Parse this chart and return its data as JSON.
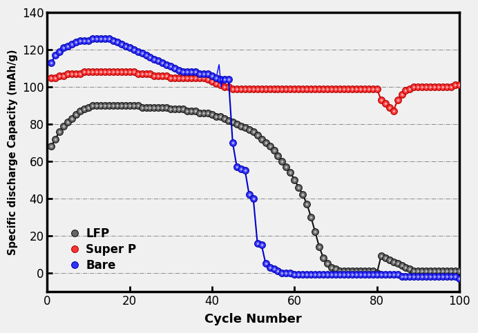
{
  "xlabel": "Cycle Number",
  "ylabel": "Specific discharge Capacity (mAh/g)",
  "xlim": [
    0,
    100
  ],
  "ylim": [
    -10,
    140
  ],
  "yticks": [
    0,
    20,
    40,
    60,
    80,
    100,
    120,
    140
  ],
  "xticks": [
    0,
    20,
    40,
    60,
    80,
    100
  ],
  "legend_labels": [
    "LFP",
    "Super P",
    "Bare"
  ],
  "LFP": {
    "x": [
      1,
      2,
      3,
      4,
      5,
      6,
      7,
      8,
      9,
      10,
      11,
      12,
      13,
      14,
      15,
      16,
      17,
      18,
      19,
      20,
      21,
      22,
      23,
      24,
      25,
      26,
      27,
      28,
      29,
      30,
      31,
      32,
      33,
      34,
      35,
      36,
      37,
      38,
      39,
      40,
      41,
      42,
      43,
      44,
      45,
      46,
      47,
      48,
      49,
      50,
      51,
      52,
      53,
      54,
      55,
      56,
      57,
      58,
      59,
      60,
      61,
      62,
      63,
      64,
      65,
      66,
      67,
      68,
      69,
      70,
      71,
      72,
      73,
      74,
      75,
      76,
      77,
      78,
      79,
      80,
      81,
      82,
      83,
      84,
      85,
      86,
      87,
      88,
      89,
      90,
      91,
      92,
      93,
      94,
      95,
      96,
      97,
      98,
      99,
      100
    ],
    "y": [
      68,
      72,
      76,
      79,
      81,
      83,
      85,
      87,
      88,
      89,
      90,
      90,
      90,
      90,
      90,
      90,
      90,
      90,
      90,
      90,
      90,
      90,
      89,
      89,
      89,
      89,
      89,
      89,
      89,
      88,
      88,
      88,
      88,
      87,
      87,
      87,
      86,
      86,
      86,
      85,
      84,
      84,
      83,
      82,
      81,
      80,
      79,
      78,
      77,
      76,
      74,
      72,
      70,
      68,
      66,
      63,
      60,
      57,
      54,
      50,
      46,
      42,
      37,
      30,
      22,
      14,
      8,
      5,
      3,
      2,
      1,
      1,
      1,
      1,
      1,
      1,
      1,
      1,
      1,
      0,
      9,
      8,
      7,
      6,
      5,
      4,
      3,
      2,
      1,
      1,
      1,
      1,
      1,
      1,
      1,
      1,
      1,
      1,
      1,
      1
    ]
  },
  "SuperP": {
    "x": [
      1,
      2,
      3,
      4,
      5,
      6,
      7,
      8,
      9,
      10,
      11,
      12,
      13,
      14,
      15,
      16,
      17,
      18,
      19,
      20,
      21,
      22,
      23,
      24,
      25,
      26,
      27,
      28,
      29,
      30,
      31,
      32,
      33,
      34,
      35,
      36,
      37,
      38,
      39,
      40,
      41,
      42,
      43,
      44,
      45,
      46,
      47,
      48,
      49,
      50,
      51,
      52,
      53,
      54,
      55,
      56,
      57,
      58,
      59,
      60,
      61,
      62,
      63,
      64,
      65,
      66,
      67,
      68,
      69,
      70,
      71,
      72,
      73,
      74,
      75,
      76,
      77,
      78,
      79,
      80,
      81,
      82,
      83,
      84,
      85,
      86,
      87,
      88,
      89,
      90,
      91,
      92,
      93,
      94,
      95,
      96,
      97,
      98,
      99,
      100
    ],
    "y": [
      105,
      105,
      106,
      106,
      107,
      107,
      107,
      107,
      108,
      108,
      108,
      108,
      108,
      108,
      108,
      108,
      108,
      108,
      108,
      108,
      108,
      107,
      107,
      107,
      107,
      106,
      106,
      106,
      106,
      105,
      105,
      105,
      105,
      105,
      105,
      105,
      105,
      105,
      104,
      103,
      102,
      101,
      100,
      100,
      99,
      99,
      99,
      99,
      99,
      99,
      99,
      99,
      99,
      99,
      99,
      99,
      99,
      99,
      99,
      99,
      99,
      99,
      99,
      99,
      99,
      99,
      99,
      99,
      99,
      99,
      99,
      99,
      99,
      99,
      99,
      99,
      99,
      99,
      99,
      99,
      93,
      91,
      89,
      87,
      93,
      96,
      98,
      99,
      100,
      100,
      100,
      100,
      100,
      100,
      100,
      100,
      100,
      100,
      101,
      101
    ]
  },
  "Bare": {
    "x": [
      1,
      2,
      3,
      4,
      5,
      6,
      7,
      8,
      9,
      10,
      11,
      12,
      13,
      14,
      15,
      16,
      17,
      18,
      19,
      20,
      21,
      22,
      23,
      24,
      25,
      26,
      27,
      28,
      29,
      30,
      31,
      32,
      33,
      34,
      35,
      36,
      37,
      38,
      39,
      40,
      41,
      42,
      43,
      44,
      45,
      46,
      47,
      48,
      49,
      50,
      51,
      52,
      53,
      54,
      55,
      56,
      57,
      58,
      59,
      60,
      61,
      62,
      63,
      64,
      65,
      66,
      67,
      68,
      69,
      70,
      71,
      72,
      73,
      74,
      75,
      76,
      77,
      78,
      79,
      80,
      81,
      82,
      83,
      84,
      85,
      86,
      87,
      88,
      89,
      90,
      91,
      92,
      93,
      94,
      95,
      96,
      97,
      98,
      99,
      100
    ],
    "y": [
      113,
      117,
      119,
      121,
      122,
      123,
      124,
      125,
      125,
      125,
      126,
      126,
      126,
      126,
      126,
      125,
      124,
      123,
      122,
      121,
      120,
      119,
      118,
      117,
      116,
      115,
      114,
      113,
      112,
      111,
      110,
      109,
      108,
      108,
      108,
      108,
      107,
      107,
      107,
      106,
      105,
      104,
      104,
      104,
      70,
      57,
      56,
      55,
      42,
      40,
      16,
      15,
      5,
      3,
      2,
      1,
      0,
      0,
      0,
      -1,
      -1,
      -1,
      -1,
      -1,
      -1,
      -1,
      -1,
      -1,
      -1,
      -1,
      -1,
      -1,
      -1,
      -1,
      -1,
      -1,
      -1,
      -1,
      -1,
      -1,
      -1,
      -1,
      -1,
      -1,
      -1,
      -2,
      -2,
      -2,
      -2,
      -2,
      -2,
      -2,
      -2,
      -2,
      -2,
      -2,
      -2,
      -2,
      -2,
      -3
    ]
  },
  "background_color": "#f0f0f0",
  "line_color_lfp": "#111111",
  "line_color_superp": "#dd0000",
  "line_color_bare": "#0000cc",
  "marker_face_lfp": "#666666",
  "marker_edge_lfp": "#111111",
  "marker_face_superp": "#ff3333",
  "marker_edge_superp": "#aa0000",
  "marker_face_bare": "#3333ff",
  "marker_edge_bare": "#0000aa",
  "grid_color": "#444444",
  "grid_linestyle": "-.",
  "spine_lw": 2.5,
  "marker_size": 7,
  "line_width": 1.5
}
